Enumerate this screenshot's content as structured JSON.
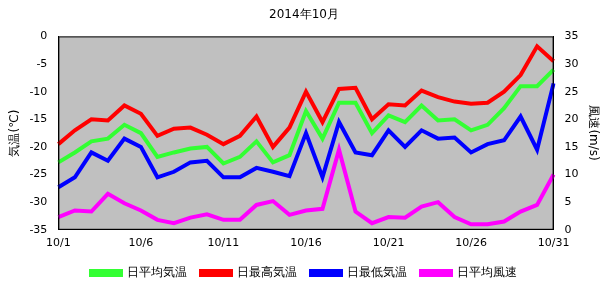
{
  "chart_data": {
    "type": "line",
    "title": "2014年10月",
    "ylabel": "気温(℃)",
    "y2label": "風速(m/s)",
    "categories": [
      "10/1",
      null,
      null,
      null,
      null,
      "10/6",
      null,
      null,
      null,
      null,
      "10/11",
      null,
      null,
      null,
      null,
      "10/16",
      null,
      null,
      null,
      null,
      "10/21",
      null,
      null,
      null,
      null,
      "10/26",
      null,
      null,
      null,
      null,
      "10/31"
    ],
    "ylim": [
      -35,
      0
    ],
    "yticks": [
      -35,
      -30,
      -25,
      -20,
      -15,
      -10,
      -5,
      0
    ],
    "y2lim": [
      0,
      35
    ],
    "y2ticks": [
      0,
      5,
      10,
      15,
      20,
      25,
      30,
      35
    ],
    "grid": false,
    "legend": "bottom",
    "marker": "none",
    "series": [
      {
        "name": "日平均気温",
        "color": "#33ff33",
        "values": [
          -22.8,
          -21,
          -19,
          -18.5,
          -16,
          -17.5,
          -21.8,
          -21,
          -20.3,
          -20,
          -23,
          -21.8,
          -19,
          -22.8,
          -21.5,
          -13.5,
          -18.5,
          -12,
          -12,
          -17.5,
          -14.3,
          -15.5,
          -12.5,
          -15.2,
          -15,
          -17,
          -16,
          -13,
          -9,
          -9,
          -6
        ]
      },
      {
        "name": "日最高気温",
        "color": "#ff0000",
        "values": [
          -19.5,
          -17,
          -15,
          -15.2,
          -12.5,
          -14,
          -18,
          -16.7,
          -16.5,
          -17.8,
          -19.5,
          -18,
          -14.5,
          -20,
          -16.5,
          -10,
          -15.5,
          -9.5,
          -9.3,
          -15,
          -12.3,
          -12.5,
          -9.8,
          -11,
          -11.8,
          -12.2,
          -12,
          -10,
          -7,
          -1.8,
          -4.5
        ]
      },
      {
        "name": "日最低気温",
        "color": "#0000ff",
        "values": [
          -27.3,
          -25.5,
          -21,
          -22.5,
          -18.5,
          -20,
          -25.5,
          -24.5,
          -22.8,
          -22.5,
          -25.5,
          -25.5,
          -23.8,
          -24.5,
          -25.3,
          -17.5,
          -25.5,
          -15.5,
          -21,
          -21.5,
          -17,
          -20,
          -17,
          -18.5,
          -18.3,
          -21,
          -19.5,
          -18.8,
          -14.5,
          -20.5,
          -8.5
        ]
      },
      {
        "name": "日平均風速",
        "color": "#ff00ff",
        "axis": "y2",
        "values": [
          2.3,
          3.5,
          3.3,
          6.5,
          4.8,
          3.5,
          1.8,
          1.2,
          2.2,
          2.8,
          1.8,
          1.8,
          4.5,
          5.2,
          2.7,
          3.5,
          3.8,
          14.5,
          3.3,
          1.2,
          2.3,
          2.2,
          4.2,
          5,
          2.3,
          1,
          1,
          1.5,
          3.3,
          4.5,
          10
        ]
      }
    ]
  }
}
